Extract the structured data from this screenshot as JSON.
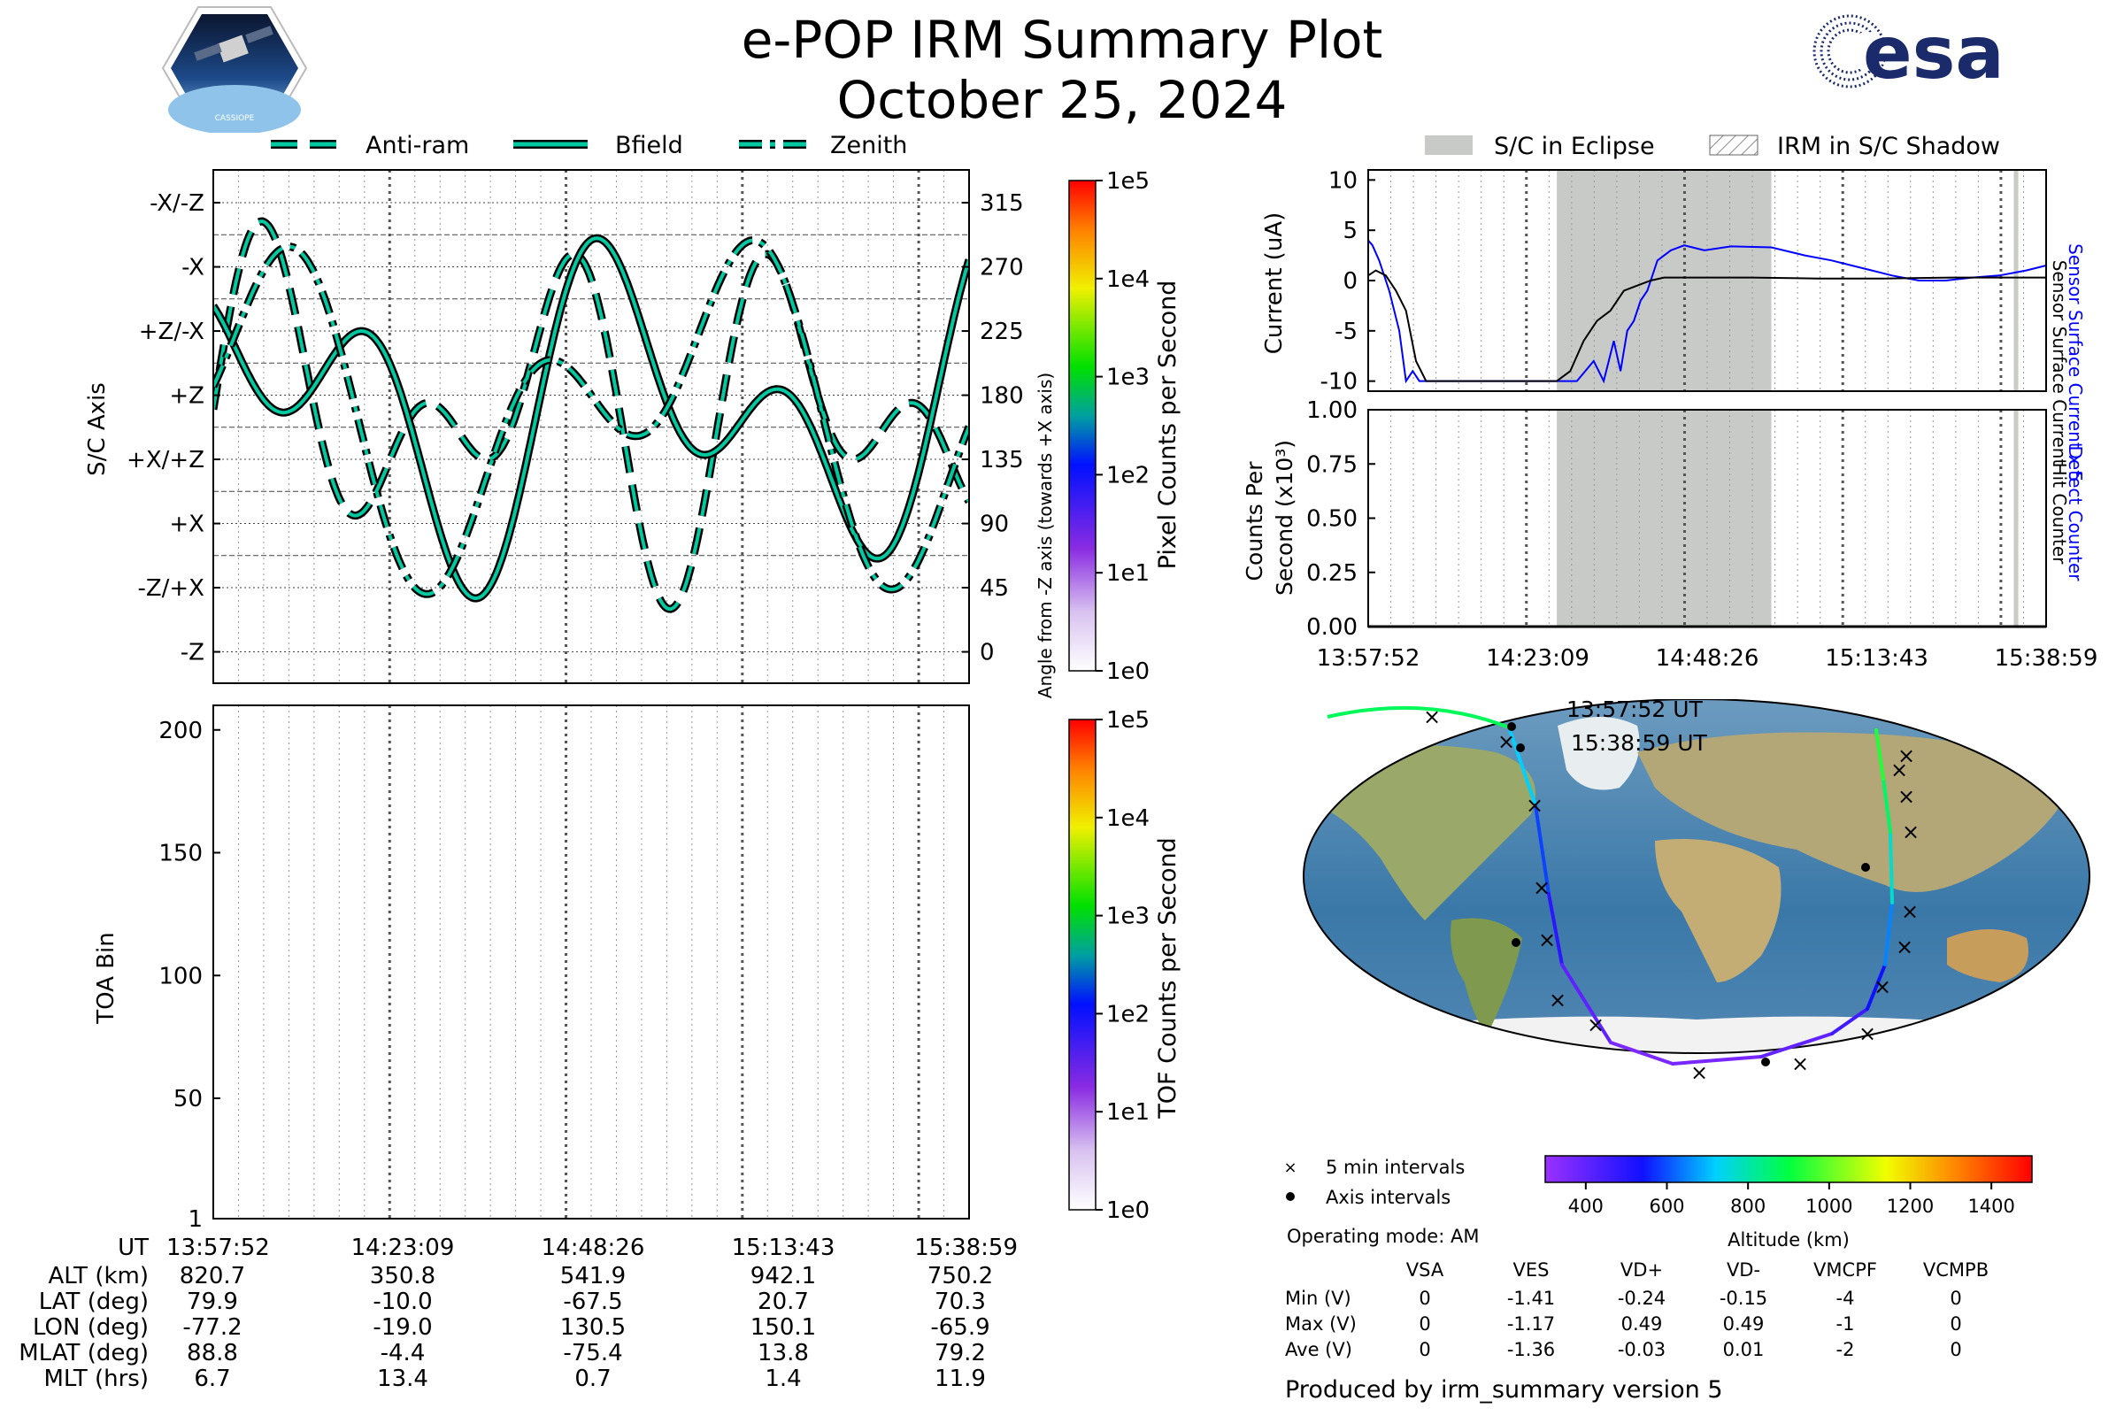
{
  "header": {
    "title": "e-POP IRM Summary Plot",
    "date": "October 25, 2024",
    "mission_logo_text": "CASSIOPE",
    "agency_logo_text": "esa"
  },
  "colors": {
    "trace": "#00c8a0",
    "trace_edge": "#000000",
    "eclipse": "#c8cac8",
    "blue": "#0000ff",
    "grid": "#888888"
  },
  "chart_data": [
    {
      "id": "sc_axis_plot",
      "type": "line",
      "title": "",
      "ylabel": "S/C Axis",
      "y2label": "Angle from -Z axis (towards +X axis)",
      "left_ticks": [
        "-X/-Z",
        "-X",
        "+Z/-X",
        "+Z",
        "+X/+Z",
        "+X",
        "-Z/+X",
        "-Z"
      ],
      "right_ticks": [
        "315",
        "270",
        "225",
        "180",
        "135",
        "90",
        "45",
        "0"
      ],
      "right_tick_values": [
        315,
        270,
        225,
        180,
        135,
        90,
        45,
        0
      ],
      "ylim": [
        -22,
        338
      ],
      "legend": {
        "placement": "top",
        "entries": [
          "Anti-ram",
          "Bfield",
          "Zenith"
        ]
      },
      "colorbar": {
        "label": "Pixel Counts per Second",
        "ticks": [
          "1e0",
          "1e1",
          "1e2",
          "1e3",
          "1e4",
          "1e5"
        ]
      }
    },
    {
      "id": "toa_plot",
      "type": "heatmap",
      "title": "",
      "ylabel": "TOA Bin",
      "yticks": [
        1,
        50,
        100,
        150,
        200
      ],
      "ylim": [
        1,
        210
      ],
      "colorbar": {
        "label": "TOF Counts per Second",
        "ticks": [
          "1e0",
          "1e1",
          "1e2",
          "1e3",
          "1e4",
          "1e5"
        ]
      }
    },
    {
      "id": "current_plot",
      "type": "line",
      "title": "",
      "ylabel": "Current (uA)",
      "yticks": [
        10,
        5,
        0,
        -5,
        -10
      ],
      "ylim": [
        -11,
        11
      ],
      "legend": {
        "placement": "top",
        "entries": [
          "S/C in Eclipse",
          "IRM in S/C Shadow"
        ]
      },
      "right_labels": [
        "Sensor Surface Current x 5",
        "Sensor Surface Current"
      ],
      "eclipse_intervals": [
        [
          "14:26:00",
          "14:58:00"
        ],
        [
          "15:34:10",
          "15:34:50"
        ]
      ],
      "series": [
        {
          "name": "Sensor Surface Current x 5",
          "color": "blue",
          "x": [
            "13:57:52",
            "13:58:30",
            "13:59:30",
            "14:01:00",
            "14:02:30",
            "14:03:30",
            "14:04:30",
            "14:05:30",
            "14:06:30",
            "14:08:00",
            "14:23:00",
            "14:29:00",
            "14:31:30",
            "14:33:00",
            "14:34:30",
            "14:35:30",
            "14:36:30",
            "14:37:30",
            "14:38:30",
            "14:39:30",
            "14:41:00",
            "14:43:00",
            "14:45:00",
            "14:48:00",
            "14:52:00",
            "14:58:00",
            "15:03:00",
            "15:07:00",
            "15:10:00",
            "15:13:00",
            "15:16:00",
            "15:20:00",
            "15:24:00",
            "15:28:00",
            "15:32:00",
            "15:36:00",
            "15:38:59"
          ],
          "y": [
            4,
            3.5,
            2,
            -1,
            -5,
            -10,
            -9,
            -10,
            -10,
            -10,
            -10,
            -10,
            -8,
            -10,
            -6,
            -9,
            -5,
            -4,
            -2,
            -1,
            2,
            3,
            3.5,
            3,
            3.4,
            3.3,
            2.5,
            2,
            1.5,
            1,
            0.5,
            0,
            0,
            0.3,
            0.5,
            1,
            1.5
          ]
        },
        {
          "name": "Sensor Surface Current",
          "color": "black",
          "x": [
            "13:57:52",
            "13:59:00",
            "14:00:30",
            "14:02:00",
            "14:03:30",
            "14:05:00",
            "14:06:30",
            "14:08:00",
            "14:23:00",
            "14:26:00",
            "14:28:00",
            "14:30:00",
            "14:32:00",
            "14:34:00",
            "14:36:00",
            "14:38:00",
            "14:40:00",
            "14:42:00",
            "14:44:00",
            "14:48:00",
            "14:55:00",
            "15:05:00",
            "15:15:00",
            "15:25:00",
            "15:35:00",
            "15:38:59"
          ],
          "y": [
            0.5,
            1,
            0.5,
            -1,
            -3,
            -8,
            -10,
            -10,
            -10,
            -10,
            -9,
            -6,
            -4,
            -3,
            -1,
            -0.5,
            0,
            0.3,
            0.3,
            0.3,
            0.3,
            0.2,
            0.2,
            0.3,
            0.3,
            0.3
          ]
        }
      ]
    },
    {
      "id": "counts_plot",
      "type": "line",
      "title": "",
      "ylabel": "Counts Per Second (x10³)",
      "yticks": [
        "1.00",
        "0.75",
        "0.50",
        "0.25",
        "0.00"
      ],
      "ylim": [
        0,
        1
      ],
      "right_labels": [
        "Detect Counter",
        "Hit Counter"
      ],
      "series": [
        {
          "name": "Detect Counter",
          "color": "blue",
          "x": [
            "13:57:52",
            "15:38:59"
          ],
          "y": [
            0,
            0
          ]
        },
        {
          "name": "Hit Counter",
          "color": "black",
          "x": [
            "13:57:52",
            "15:38:59"
          ],
          "y": [
            0,
            0
          ]
        }
      ]
    },
    {
      "id": "ground_track_map",
      "type": "scatter",
      "title": "",
      "start_label": "13:57:52 UT",
      "end_label": "15:38:59 UT",
      "legend": {
        "placement": "bottom-left",
        "entries": [
          "5 min intervals",
          "Axis intervals"
        ]
      },
      "colorbar": {
        "label": "Altitude (km)",
        "ticks": [
          400,
          600,
          800,
          1000,
          1200,
          1400
        ],
        "range": [
          300,
          1500
        ]
      }
    }
  ],
  "time_axis": {
    "ticks": [
      "13:57:52",
      "14:23:09",
      "14:48:26",
      "15:13:43",
      "15:38:59"
    ]
  },
  "ephemeris": {
    "header": "UT",
    "rows": [
      {
        "label": "ALT (km)",
        "values": [
          "820.7",
          "350.8",
          "541.9",
          "942.1",
          "750.2"
        ]
      },
      {
        "label": "LAT (deg)",
        "values": [
          "79.9",
          "-10.0",
          "-67.5",
          "20.7",
          "70.3"
        ]
      },
      {
        "label": "LON (deg)",
        "values": [
          "-77.2",
          "-19.0",
          "130.5",
          "150.1",
          "-65.9"
        ]
      },
      {
        "label": "MLAT (deg)",
        "values": [
          "88.8",
          "-4.4",
          "-75.4",
          "13.8",
          "79.2"
        ]
      },
      {
        "label": "MLT (hrs)",
        "values": [
          "6.7",
          "13.4",
          "0.7",
          "1.4",
          "11.9"
        ]
      }
    ]
  },
  "operating_mode": "Operating mode: AM",
  "voltage_table": {
    "columns": [
      "VSA",
      "VES",
      "VD+",
      "VD-",
      "VMCPF",
      "VCMPB"
    ],
    "rows": [
      {
        "label": "Min (V)",
        "values": [
          "0",
          "-1.41",
          "-0.24",
          "-0.15",
          "-4",
          "0"
        ]
      },
      {
        "label": "Max (V)",
        "values": [
          "0",
          "-1.17",
          "0.49",
          "0.49",
          "-1",
          "0"
        ]
      },
      {
        "label": "Ave (V)",
        "values": [
          "0",
          "-1.36",
          "-0.03",
          "0.01",
          "-2",
          "0"
        ]
      }
    ]
  },
  "footer": "Produced by irm_summary version 5"
}
